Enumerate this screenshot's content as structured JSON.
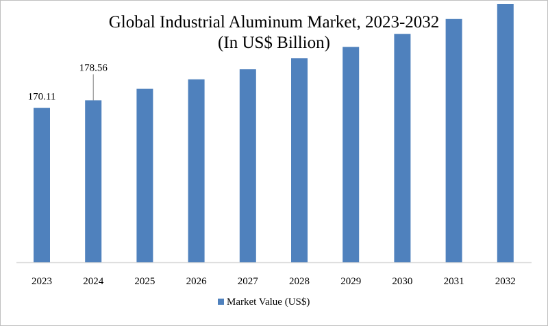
{
  "chart_data": {
    "type": "bar",
    "title": "Global Industrial Aluminum Market, 2023-2032",
    "subtitle": "(In US$ Billion)",
    "categories": [
      "2023",
      "2024",
      "2025",
      "2026",
      "2027",
      "2028",
      "2029",
      "2030",
      "2031",
      "2032"
    ],
    "series": [
      {
        "name": "Market Value (US$)",
        "values": [
          170.11,
          178.56,
          191.2,
          201.6,
          212.7,
          224.8,
          237.3,
          251.6,
          268.1,
          284.53
        ]
      }
    ],
    "data_labels": {
      "2023": "170.11",
      "2024": "178.56",
      "2032": "284.53"
    },
    "ylim": [
      0,
      300
    ],
    "grid": false,
    "legend": "bottom",
    "colors": {
      "bar": "#4f81bd",
      "axis": "#d9d9d9"
    }
  }
}
